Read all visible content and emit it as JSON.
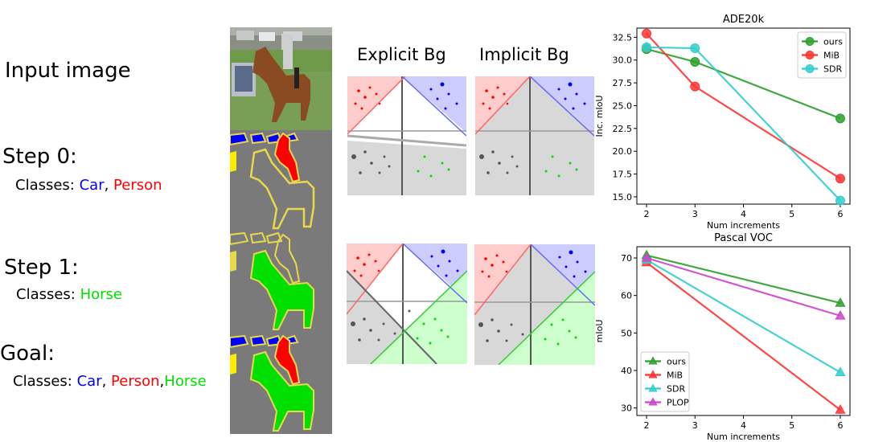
{
  "left": {
    "input_label": "Input image",
    "step0": {
      "label": "Step 0:",
      "classes_prefix": "Classes: ",
      "c1": "Car",
      "sep": ", ",
      "c2": "Person"
    },
    "step1": {
      "label": "Step 1:",
      "classes_prefix": "Classes: ",
      "c1": "Horse"
    },
    "goal": {
      "label": "Goal:",
      "classes_prefix": "Classes: ",
      "c1": "Car",
      "sep1": ", ",
      "c2": "Person",
      "sep2": ",",
      "c3": "Horse"
    }
  },
  "headers": {
    "explicit": "Explicit Bg",
    "implicit": "Implicit Bg"
  },
  "colors": {
    "car": "#0000ff",
    "person": "#ff0000",
    "horse": "#00e000",
    "outline": "#e8d84a",
    "seg_bg": "#7a7a7a"
  },
  "chart_data": [
    {
      "type": "line",
      "title": "ADE20k",
      "xlabel": "Num increments",
      "ylabel": "Inc. mIoU",
      "x": [
        2,
        3,
        6
      ],
      "xticks": [
        "2",
        "3",
        "4",
        "5",
        "6"
      ],
      "yticks": [
        "15.0",
        "17.5",
        "20.0",
        "22.5",
        "25.0",
        "27.5",
        "30.0",
        "32.5"
      ],
      "xlim": [
        1.8,
        6.2
      ],
      "ylim": [
        14.2,
        33.5
      ],
      "legend": "top-right",
      "marker": "circle",
      "series": [
        {
          "name": "ours",
          "values": [
            31.2,
            29.8,
            23.6
          ],
          "color": "#2ca02c"
        },
        {
          "name": "MiB",
          "values": [
            32.9,
            27.1,
            17.0
          ],
          "color": "#ff3333"
        },
        {
          "name": "SDR",
          "values": [
            31.4,
            31.3,
            14.6
          ],
          "color": "#33cccc"
        }
      ]
    },
    {
      "type": "line",
      "title": "Pascal VOC",
      "xlabel": "Num increments",
      "ylabel": "mIoU",
      "x": [
        2,
        6
      ],
      "xticks": [
        "2",
        "3",
        "4",
        "5",
        "6"
      ],
      "yticks": [
        "30",
        "40",
        "50",
        "60",
        "70"
      ],
      "xlim": [
        1.8,
        6.2
      ],
      "ylim": [
        28,
        73
      ],
      "legend": "bottom-left",
      "marker": "triangle",
      "series": [
        {
          "name": "ours",
          "values": [
            70.7,
            58.0
          ],
          "color": "#2ca02c"
        },
        {
          "name": "MiB",
          "values": [
            68.8,
            29.5
          ],
          "color": "#ff3333"
        },
        {
          "name": "SDR",
          "values": [
            69.5,
            39.5
          ],
          "color": "#33cccc"
        },
        {
          "name": "PLOP",
          "values": [
            70.0,
            54.6
          ],
          "color": "#cc44cc"
        }
      ]
    }
  ]
}
